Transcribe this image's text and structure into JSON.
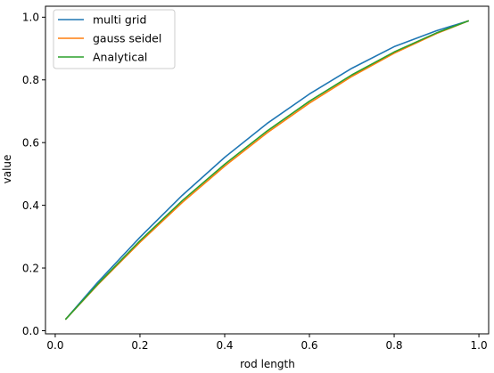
{
  "chart_data": {
    "type": "line",
    "title": "",
    "xlabel": "rod length",
    "ylabel": "value",
    "xlim": [
      -0.023,
      1.023
    ],
    "ylim": [
      -0.01,
      1.035
    ],
    "xticks": [
      0.0,
      0.2,
      0.4,
      0.6,
      0.8,
      1.0
    ],
    "xtick_labels": [
      "0.0",
      "0.2",
      "0.4",
      "0.6",
      "0.8",
      "1.0"
    ],
    "yticks": [
      0.0,
      0.2,
      0.4,
      0.6,
      0.8,
      1.0
    ],
    "ytick_labels": [
      "0.0",
      "0.2",
      "0.4",
      "0.6",
      "0.8",
      "1.0"
    ],
    "grid": false,
    "legend_position": "top-left",
    "series": [
      {
        "name": "multi grid",
        "color": "#1f77b4",
        "x": [
          0.025,
          0.1,
          0.2,
          0.3,
          0.4,
          0.5,
          0.6,
          0.7,
          0.8,
          0.9,
          0.975
        ],
        "y": [
          0.037,
          0.154,
          0.298,
          0.432,
          0.553,
          0.661,
          0.755,
          0.837,
          0.906,
          0.957,
          0.988
        ]
      },
      {
        "name": "gauss seidel",
        "color": "#ff7f0e",
        "x": [
          0.025,
          0.1,
          0.2,
          0.3,
          0.4,
          0.5,
          0.6,
          0.7,
          0.8,
          0.9,
          0.975
        ],
        "y": [
          0.037,
          0.146,
          0.282,
          0.409,
          0.525,
          0.631,
          0.726,
          0.811,
          0.885,
          0.948,
          0.988
        ]
      },
      {
        "name": "Analytical",
        "color": "#2ca02c",
        "x": [
          0.025,
          0.1,
          0.2,
          0.3,
          0.4,
          0.5,
          0.6,
          0.7,
          0.8,
          0.9,
          0.975
        ],
        "y": [
          0.037,
          0.148,
          0.287,
          0.415,
          0.531,
          0.637,
          0.732,
          0.816,
          0.889,
          0.95,
          0.988
        ]
      }
    ]
  }
}
